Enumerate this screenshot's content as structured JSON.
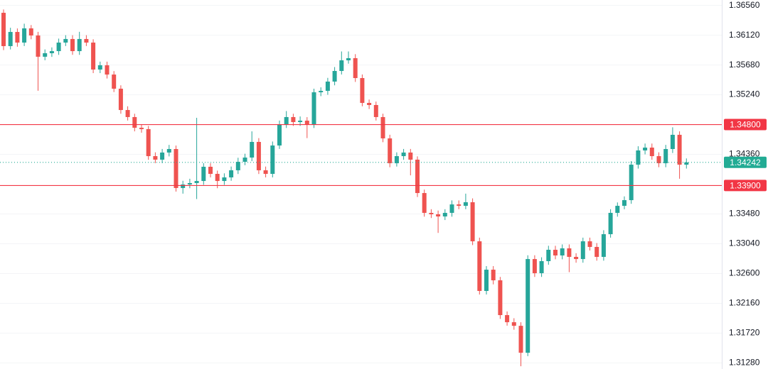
{
  "chart_data": {
    "type": "candlestick",
    "up_color": "#26a69a",
    "down_color": "#ef5350",
    "grid": true,
    "ylim": [
      1.3119,
      1.3664
    ],
    "yticks": [
      {
        "value": 1.3656,
        "label": "1.36560"
      },
      {
        "value": 1.3612,
        "label": "1.36120"
      },
      {
        "value": 1.3568,
        "label": "1.35680"
      },
      {
        "value": 1.3524,
        "label": "1.35240"
      },
      {
        "value": 1.3436,
        "label": "1.34360"
      },
      {
        "value": 1.3348,
        "label": "1.33480"
      },
      {
        "value": 1.3304,
        "label": "1.33040"
      },
      {
        "value": 1.326,
        "label": "1.32600"
      },
      {
        "value": 1.3216,
        "label": "1.32160"
      },
      {
        "value": 1.3172,
        "label": "1.31720"
      },
      {
        "value": 1.3128,
        "label": "1.31280"
      }
    ],
    "levels": [
      {
        "value": 1.348,
        "label": "1.34800",
        "color": "#f23645"
      },
      {
        "value": 1.339,
        "label": "1.33900",
        "color": "#f23645"
      }
    ],
    "last_price": 1.34242,
    "last_price_color": "#22ab94",
    "open": [
      1.36451,
      1.35959,
      1.36168,
      1.36011,
      1.36221,
      1.36116,
      1.35802,
      1.35854,
      1.35885,
      1.36011,
      1.36064,
      1.35885,
      1.36064,
      1.36011,
      1.35613,
      1.35676,
      1.35539,
      1.3533,
      1.35015,
      1.34911,
      1.34753,
      1.34733,
      1.34334,
      1.34282,
      1.34387,
      1.34439,
      1.33863,
      1.33915,
      1.33936,
      1.33967,
      1.34177,
      1.34072,
      1.33967,
      1.3402,
      1.34125,
      1.3425,
      1.34313,
      1.34544,
      1.34125,
      1.34072,
      1.34491,
      1.34806,
      1.34911,
      1.34837,
      1.34858,
      1.34806,
      1.35277,
      1.35298,
      1.35435,
      1.35592,
      1.35749,
      1.35781,
      1.35487,
      1.3512,
      1.35089,
      1.34911,
      1.34596,
      1.34229,
      1.34334,
      1.34387,
      1.34282,
      1.33789,
      1.33496,
      1.33475,
      1.33443,
      1.33496,
      1.33621,
      1.336,
      1.33653,
      1.33076,
      1.32343,
      1.32657,
      1.325,
      1.31986,
      1.31881,
      1.31828,
      1.3143,
      1.32814,
      1.32605,
      1.32783,
      1.32951,
      1.32867,
      1.32972,
      1.32846,
      1.32814,
      1.33076,
      1.32993,
      1.32846,
      1.33181,
      1.33496,
      1.336,
      1.33684,
      1.34208,
      1.34418,
      1.3446,
      1.34334,
      1.34229,
      1.34439,
      1.34649,
      1.34208
    ],
    "high": [
      1.365,
      1.3623,
      1.3622,
      1.3629,
      1.3627,
      1.3617,
      1.3591,
      1.3594,
      1.3607,
      1.3612,
      1.3612,
      1.3617,
      1.3612,
      1.3606,
      1.3573,
      1.3573,
      1.3559,
      1.3538,
      1.3507,
      1.3496,
      1.348,
      1.3478,
      1.3439,
      1.3444,
      1.345,
      1.3449,
      1.3397,
      1.34,
      1.349,
      1.3423,
      1.3423,
      1.3412,
      1.3408,
      1.3418,
      1.3431,
      1.3437,
      1.347,
      1.346,
      1.3418,
      1.3455,
      1.3486,
      1.35,
      1.3496,
      1.3492,
      1.3491,
      1.3533,
      1.3535,
      1.3549,
      1.3565,
      1.3588,
      1.3588,
      1.3584,
      1.3554,
      1.3517,
      1.3514,
      1.3496,
      1.3465,
      1.3439,
      1.3444,
      1.3444,
      1.3433,
      1.3384,
      1.3355,
      1.3353,
      1.3355,
      1.3368,
      1.3368,
      1.3378,
      1.3371,
      1.3313,
      1.3271,
      1.3271,
      1.3255,
      1.3204,
      1.3194,
      1.3188,
      1.3287,
      1.3287,
      1.3284,
      1.3301,
      1.3301,
      1.3303,
      1.3303,
      1.329,
      1.3313,
      1.3313,
      1.3305,
      1.3324,
      1.3355,
      1.3365,
      1.3374,
      1.3426,
      1.3448,
      1.3452,
      1.3452,
      1.3439,
      1.345,
      1.3476,
      1.347,
      1.343
    ],
    "low": [
      1.359,
      1.3591,
      1.3595,
      1.3596,
      1.3606,
      1.353,
      1.3575,
      1.358,
      1.3583,
      1.3596,
      1.3583,
      1.3583,
      1.3596,
      1.3556,
      1.3556,
      1.3548,
      1.3528,
      1.3496,
      1.3486,
      1.347,
      1.3468,
      1.3428,
      1.3423,
      1.3423,
      1.3433,
      1.3381,
      1.3378,
      1.3386,
      1.337,
      1.3391,
      1.3402,
      1.3386,
      1.3391,
      1.3397,
      1.3407,
      1.342,
      1.3426,
      1.3407,
      1.3402,
      1.3402,
      1.3444,
      1.3475,
      1.3478,
      1.3478,
      1.346,
      1.3475,
      1.3522,
      1.3524,
      1.3538,
      1.3554,
      1.357,
      1.3543,
      1.3507,
      1.3503,
      1.3486,
      1.3454,
      1.3417,
      1.3418,
      1.3428,
      1.3405,
      1.3373,
      1.3344,
      1.3342,
      1.332,
      1.3339,
      1.3344,
      1.3355,
      1.3355,
      1.3302,
      1.3229,
      1.3229,
      1.3244,
      1.3193,
      1.3183,
      1.3177,
      1.3123,
      1.3138,
      1.3255,
      1.3255,
      1.3273,
      1.3281,
      1.3281,
      1.3262,
      1.3276,
      1.3276,
      1.3294,
      1.3279,
      1.3279,
      1.3313,
      1.3344,
      1.3355,
      1.3363,
      1.3415,
      1.3436,
      1.3428,
      1.3417,
      1.3417,
      1.3438,
      1.34,
      1.3415
    ],
    "close": [
      1.35959,
      1.36168,
      1.36011,
      1.36221,
      1.36116,
      1.35802,
      1.35854,
      1.35885,
      1.36011,
      1.36064,
      1.35885,
      1.36064,
      1.36011,
      1.35613,
      1.35676,
      1.35539,
      1.3533,
      1.35015,
      1.34911,
      1.34753,
      1.34733,
      1.34334,
      1.34282,
      1.34387,
      1.34439,
      1.33863,
      1.33915,
      1.33936,
      1.33967,
      1.34177,
      1.34072,
      1.33967,
      1.3402,
      1.34125,
      1.3425,
      1.34313,
      1.34544,
      1.34125,
      1.34072,
      1.34491,
      1.34806,
      1.34911,
      1.34837,
      1.34858,
      1.34806,
      1.35277,
      1.35298,
      1.35435,
      1.35592,
      1.35749,
      1.35781,
      1.35487,
      1.3512,
      1.35089,
      1.34911,
      1.34596,
      1.34229,
      1.34334,
      1.34387,
      1.34282,
      1.33789,
      1.33496,
      1.33475,
      1.33443,
      1.33496,
      1.33621,
      1.336,
      1.33653,
      1.33076,
      1.32343,
      1.32657,
      1.325,
      1.31986,
      1.31881,
      1.31828,
      1.3143,
      1.32814,
      1.32605,
      1.32783,
      1.32951,
      1.32867,
      1.32972,
      1.32846,
      1.32814,
      1.33076,
      1.32993,
      1.32846,
      1.33181,
      1.33496,
      1.336,
      1.33684,
      1.34208,
      1.34418,
      1.3446,
      1.34334,
      1.34229,
      1.34439,
      1.34649,
      1.34208,
      1.34242
    ]
  }
}
